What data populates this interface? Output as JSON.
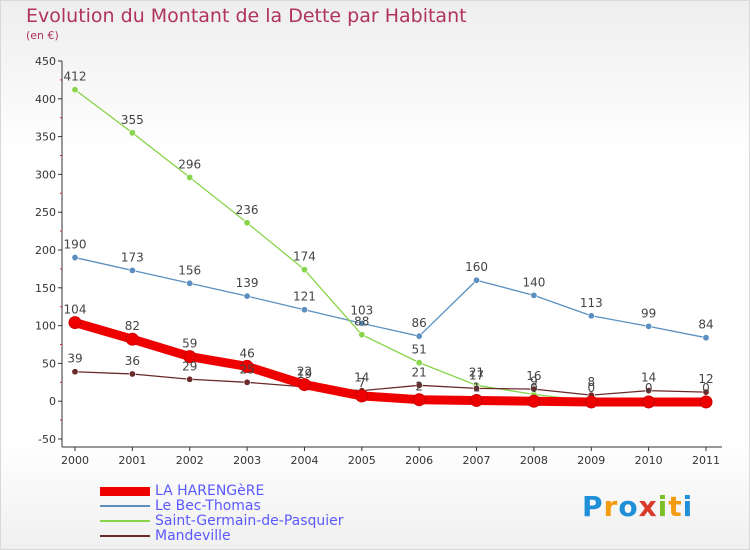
{
  "page": {
    "title": "Evolution du Montant de la Dette par Habitant",
    "subtitle": "(en €)"
  },
  "logo": {
    "text": "Proxiti",
    "letters": [
      {
        "char": "P",
        "color": "#1f8fd8"
      },
      {
        "char": "r",
        "color": "#f39c12"
      },
      {
        "char": "o",
        "color": "#1f8fd8"
      },
      {
        "char": "x",
        "color": "#d93a2b"
      },
      {
        "char": "i",
        "color": "#7cbf2a"
      },
      {
        "char": "t",
        "color": "#f39c12"
      },
      {
        "char": "i",
        "color": "#1f8fd8"
      }
    ]
  },
  "chart_data": {
    "type": "line",
    "title": "Evolution du Montant de la Dette par Habitant",
    "ylabel": "(en €)",
    "xlabel": "",
    "x": [
      "2000",
      "2001",
      "2002",
      "2003",
      "2004",
      "2005",
      "2006",
      "2007",
      "2008",
      "2009",
      "2010",
      "2011"
    ],
    "ylim": [
      -50,
      450
    ],
    "yticks": [
      -50,
      0,
      50,
      100,
      150,
      200,
      250,
      300,
      350,
      400,
      450
    ],
    "grid": false,
    "legend_position": "bottom-left",
    "series": [
      {
        "name": "LA HARENGèRE",
        "color": "#ee0000",
        "values": [
          104,
          82,
          59,
          46,
          22,
          7,
          2,
          1,
          0,
          -1,
          -1,
          -1
        ],
        "labels": [
          "104",
          "82",
          "59",
          "46",
          "22",
          "7",
          "2",
          "1",
          "0",
          "",
          "",
          ""
        ]
      },
      {
        "name": "Le Bec-Thomas",
        "color": "#5b8fbf",
        "values": [
          190,
          173,
          156,
          139,
          121,
          103,
          86,
          160,
          140,
          113,
          99,
          84
        ],
        "labels": [
          "190",
          "173",
          "156",
          "139",
          "121",
          "103",
          "86",
          "160",
          "140",
          "113",
          "99",
          "84"
        ]
      },
      {
        "name": "Saint-Germain-de-Pasquier",
        "color": "#88d44a",
        "values": [
          412,
          355,
          296,
          236,
          174,
          88,
          51,
          21,
          9,
          0,
          0,
          0
        ],
        "labels": [
          "412",
          "355",
          "296",
          "236",
          "174",
          "88",
          "51",
          "21",
          "9",
          "0",
          "0",
          "0"
        ]
      },
      {
        "name": "Mandeville",
        "color": "#6b2a2a",
        "values": [
          39,
          36,
          29,
          25,
          19,
          14,
          21,
          17,
          16,
          8,
          14,
          12
        ],
        "labels": [
          "39",
          "36",
          "29",
          "25",
          "19",
          "14",
          "21",
          "17",
          "16",
          "8",
          "14",
          "12"
        ]
      }
    ]
  }
}
